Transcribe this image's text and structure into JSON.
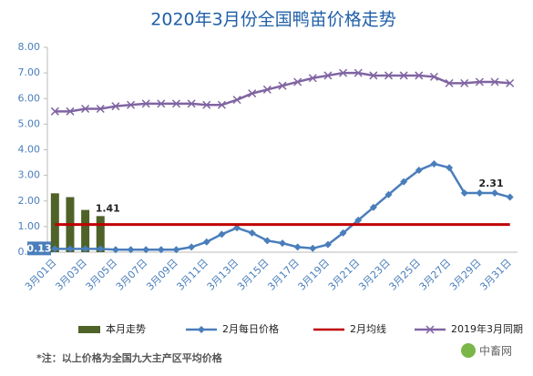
{
  "chart_data": {
    "type": "combo",
    "title": "2020年3月份全国鸭苗价格走势",
    "categories": [
      "3月01日",
      null,
      "3月03日",
      null,
      "3月05日",
      null,
      "3月07日",
      null,
      "3月09日",
      null,
      "3月11日",
      null,
      "3月13日",
      null,
      "3月15日",
      null,
      "3月17日",
      null,
      "3月19日",
      null,
      "3月21日",
      null,
      "3月23日",
      null,
      "3月25日",
      null,
      "3月27日",
      null,
      "3月29日",
      null,
      "3月31日"
    ],
    "ylim": [
      0,
      8
    ],
    "yticks": [
      {
        "value": 0,
        "label": "0.00"
      },
      {
        "value": 1,
        "label": "1.00"
      },
      {
        "value": 2,
        "label": "2.00"
      },
      {
        "value": 3,
        "label": "3.00"
      },
      {
        "value": 4,
        "label": "4.00"
      },
      {
        "value": 5,
        "label": "5.00"
      },
      {
        "value": 6,
        "label": "6.00"
      },
      {
        "value": 7,
        "label": "7.00"
      },
      {
        "value": 8,
        "label": "8.00"
      }
    ],
    "grid": false,
    "series": [
      {
        "name": "本月走势",
        "kind": "bar",
        "color": "#4f6228",
        "values": [
          2.3,
          2.15,
          1.65,
          1.41,
          null,
          null,
          null,
          null,
          null,
          null,
          null,
          null,
          null,
          null,
          null,
          null,
          null,
          null,
          null,
          null,
          null,
          null,
          null,
          null,
          null,
          null,
          null,
          null,
          null,
          null,
          null
        ]
      },
      {
        "name": "2月每日价格",
        "kind": "line",
        "marker": "diamond",
        "color": "#4a7ebb",
        "values": [
          0.13,
          0.13,
          0.13,
          0.13,
          0.1,
          0.1,
          0.1,
          0.1,
          0.1,
          0.2,
          0.4,
          0.7,
          0.95,
          0.75,
          0.45,
          0.35,
          0.2,
          0.15,
          0.3,
          0.75,
          1.25,
          1.75,
          2.25,
          2.75,
          3.2,
          3.45,
          3.3,
          2.31,
          2.31,
          2.31,
          2.15
        ]
      },
      {
        "name": "2月均线",
        "kind": "line",
        "marker": "none",
        "color": "#c00000",
        "values": [
          1.08,
          1.08,
          1.08,
          1.08,
          1.08,
          1.08,
          1.08,
          1.08,
          1.08,
          1.08,
          1.08,
          1.08,
          1.08,
          1.08,
          1.08,
          1.08,
          1.08,
          1.08,
          1.08,
          1.08,
          1.08,
          1.08,
          1.08,
          1.08,
          1.08,
          1.08,
          1.08,
          1.08,
          1.08,
          1.08,
          1.08
        ]
      },
      {
        "name": "2019年3月同期",
        "kind": "line",
        "marker": "x",
        "color": "#8064a2",
        "values": [
          5.5,
          5.5,
          5.6,
          5.6,
          5.7,
          5.75,
          5.8,
          5.8,
          5.8,
          5.8,
          5.75,
          5.75,
          5.95,
          6.2,
          6.35,
          6.5,
          6.65,
          6.8,
          6.9,
          7.0,
          7.0,
          6.9,
          6.9,
          6.9,
          6.9,
          6.85,
          6.6,
          6.6,
          6.65,
          6.65,
          6.6
        ]
      }
    ],
    "note": "*注：以上价格为全国九大主产区平均价格",
    "watermark": "中畜网"
  }
}
